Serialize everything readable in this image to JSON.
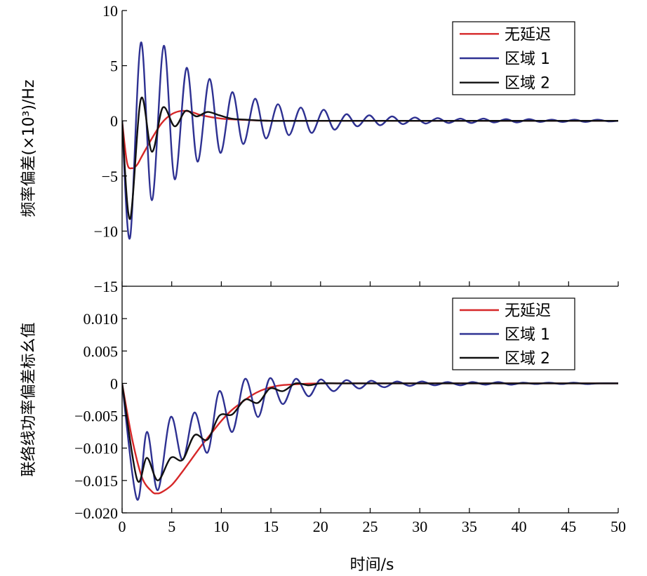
{
  "chart_data": [
    {
      "type": "line",
      "ylabel": "频率偏差(×10³)/Hz",
      "xlim": [
        0,
        50
      ],
      "ylim": [
        -15,
        10
      ],
      "xticks": [],
      "yticks": [
        {
          "value": 10,
          "label": "10"
        },
        {
          "value": 5,
          "label": "5"
        },
        {
          "value": 0,
          "label": "0"
        },
        {
          "value": -5,
          "label": "−5"
        },
        {
          "value": -10,
          "label": "−10"
        },
        {
          "value": -15,
          "label": "−15"
        }
      ],
      "legend_position": "top-right",
      "series": [
        {
          "name": "无延迟",
          "color": "#d62728",
          "x": [
            0,
            0.5,
            1,
            1.5,
            2,
            3,
            4,
            5,
            6,
            7,
            8,
            10,
            12,
            15,
            20,
            30,
            50
          ],
          "y": [
            0,
            -3.8,
            -4.3,
            -4.0,
            -3.2,
            -1.6,
            -0.2,
            0.6,
            0.9,
            0.8,
            0.5,
            0.2,
            0.1,
            0,
            0,
            0,
            0
          ]
        },
        {
          "name": "区域 1",
          "color": "#2e3192",
          "x": [
            0,
            0.8,
            1.9,
            3.0,
            4.2,
            5.3,
            6.5,
            7.6,
            8.8,
            9.9,
            11.1,
            12.2,
            13.4,
            14.5,
            15.7,
            16.8,
            18.0,
            19.1,
            20.3,
            21.4,
            22.6,
            23.7,
            24.9,
            26.0,
            27.2,
            28.3,
            29.5,
            30.6,
            31.8,
            32.9,
            34.1,
            35.2,
            36.4,
            37.5,
            38.7,
            39.8,
            41.0,
            42.1,
            43.3,
            44.4,
            45.6,
            46.7,
            47.9,
            49.0,
            50
          ],
          "y": [
            0,
            -10.6,
            7.1,
            -7.2,
            6.8,
            -5.3,
            4.8,
            -3.7,
            3.8,
            -2.9,
            2.6,
            -2.1,
            2.0,
            -1.6,
            1.5,
            -1.3,
            1.2,
            -1.1,
            1.0,
            -0.8,
            0.6,
            -0.5,
            0.5,
            -0.4,
            0.4,
            -0.3,
            0.3,
            -0.25,
            0.25,
            -0.2,
            0.2,
            -0.2,
            0.2,
            -0.15,
            0.15,
            -0.15,
            0.15,
            -0.1,
            0.1,
            -0.1,
            0.1,
            -0.1,
            0.1,
            -0.05,
            0
          ]
        },
        {
          "name": "区域 2",
          "color": "#111111",
          "x": [
            0,
            0.8,
            1.9,
            3.0,
            4.1,
            5.3,
            6.4,
            7.5,
            8.6,
            9.8,
            11.0,
            12.5,
            15,
            20,
            50
          ],
          "y": [
            0,
            -8.9,
            2.0,
            -2.8,
            1.2,
            -0.5,
            0.9,
            0.4,
            0.8,
            0.5,
            0.2,
            0.1,
            0,
            0,
            0
          ]
        }
      ]
    },
    {
      "type": "line",
      "xlabel": "时间/s",
      "ylabel": "联络线功率偏差标幺值",
      "xlim": [
        0,
        50
      ],
      "ylim": [
        -0.02,
        0.015
      ],
      "xticks": [
        {
          "value": 0,
          "label": "0"
        },
        {
          "value": 5,
          "label": "5"
        },
        {
          "value": 10,
          "label": "10"
        },
        {
          "value": 15,
          "label": "15"
        },
        {
          "value": 20,
          "label": "20"
        },
        {
          "value": 25,
          "label": "25"
        },
        {
          "value": 30,
          "label": "30"
        },
        {
          "value": 35,
          "label": "35"
        },
        {
          "value": 40,
          "label": "40"
        },
        {
          "value": 45,
          "label": "45"
        },
        {
          "value": 50,
          "label": "50"
        }
      ],
      "yticks": [
        {
          "value": 0.01,
          "label": "0.010"
        },
        {
          "value": 0.005,
          "label": "0.005"
        },
        {
          "value": 0,
          "label": "0"
        },
        {
          "value": -0.005,
          "label": "−0.005"
        },
        {
          "value": -0.01,
          "label": "−0.010"
        },
        {
          "value": -0.015,
          "label": "−0.015"
        },
        {
          "value": -0.02,
          "label": "−0.020"
        }
      ],
      "legend_position": "top-right",
      "series": [
        {
          "name": "无延迟",
          "color": "#d62728",
          "x": [
            0,
            1,
            2,
            3,
            3.5,
            4,
            5,
            6,
            7,
            8,
            9,
            10,
            11,
            12,
            13,
            14,
            15,
            16,
            18,
            20,
            25,
            30,
            50
          ],
          "y": [
            0,
            -0.0085,
            -0.0145,
            -0.0167,
            -0.017,
            -0.0168,
            -0.0157,
            -0.0138,
            -0.0117,
            -0.0096,
            -0.0077,
            -0.0058,
            -0.0042,
            -0.003,
            -0.0019,
            -0.0011,
            -0.0006,
            -0.0003,
            -0.0001,
            0,
            0,
            0,
            0
          ]
        },
        {
          "name": "区域 1",
          "color": "#2e3192",
          "x": [
            0,
            1.5,
            2.5,
            3.6,
            4.9,
            6.1,
            7.3,
            8.6,
            9.8,
            11.1,
            12.4,
            13.7,
            14.9,
            16.2,
            17.5,
            18.8,
            20.0,
            21.3,
            22.6,
            23.9,
            25.1,
            26.4,
            27.7,
            29.0,
            30.2,
            31.5,
            32.8,
            34.1,
            35.3,
            36.6,
            37.9,
            39.2,
            40.4,
            41.7,
            43.0,
            44.3,
            45.5,
            46.8,
            48.1,
            50
          ],
          "y": [
            0,
            -0.0179,
            -0.0075,
            -0.0165,
            -0.0052,
            -0.0118,
            -0.0045,
            -0.0107,
            -0.0012,
            -0.0075,
            0.0007,
            -0.0052,
            0.0008,
            -0.0032,
            0.0007,
            -0.002,
            0.0006,
            -0.0012,
            0.0005,
            -0.0008,
            0.0004,
            -0.0006,
            0.0003,
            -0.0004,
            0.0003,
            -0.0003,
            0.0002,
            -0.0003,
            0.0002,
            -0.0002,
            0.0002,
            -0.0002,
            0.0001,
            -0.0001,
            0.0001,
            -0.0001,
            0.0001,
            -0.0001,
            0,
            0
          ]
        },
        {
          "name": "区域 2",
          "color": "#111111",
          "x": [
            0,
            1.5,
            2.5,
            3.6,
            4.9,
            6.1,
            7.3,
            8.6,
            9.8,
            11.1,
            12.4,
            13.7,
            14.9,
            16.2,
            17.5,
            18.8,
            20.0,
            22,
            25,
            30,
            50
          ],
          "y": [
            0,
            -0.0148,
            -0.0115,
            -0.015,
            -0.0115,
            -0.0118,
            -0.008,
            -0.0087,
            -0.005,
            -0.0048,
            -0.0025,
            -0.003,
            -0.0008,
            -0.0012,
            0,
            -0.0003,
            0,
            0,
            0,
            0,
            0
          ]
        }
      ]
    }
  ]
}
